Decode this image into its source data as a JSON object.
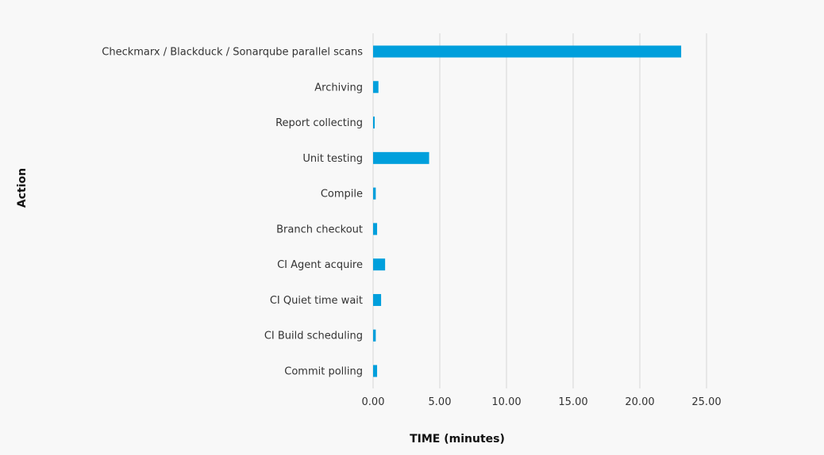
{
  "chart_data": {
    "type": "bar",
    "orientation": "horizontal",
    "categories": [
      "Checkmarx / Blackduck / Sonarqube parallel scans",
      "Archiving",
      "Report collecting",
      "Unit testing",
      "Compile",
      "Branch checkout",
      "CI Agent acquire",
      "CI Quiet time wait",
      "CI Build scheduling",
      "Commit polling"
    ],
    "values": [
      23.1,
      0.4,
      0.1,
      4.2,
      0.2,
      0.3,
      0.9,
      0.6,
      0.2,
      0.3
    ],
    "xlabel": "TIME (minutes)",
    "ylabel": "Action",
    "xlim": [
      0,
      25
    ],
    "xticks": [
      0,
      5,
      10,
      15,
      20,
      25
    ],
    "xtick_labels": [
      "0.00",
      "5.00",
      "10.00",
      "15.00",
      "20.00",
      "25.00"
    ],
    "grid": "vertical",
    "legend": "none",
    "colors": {
      "bar": "#009fdc",
      "grid": "#d6d6d6",
      "background": "#f8f8f8"
    }
  }
}
